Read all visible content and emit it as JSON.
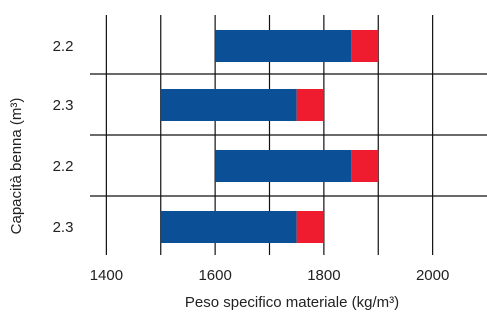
{
  "chart_data": {
    "type": "bar",
    "orientation": "horizontal",
    "stacked": true,
    "categories": [
      "2.2",
      "2.3",
      "2.2",
      "2.3"
    ],
    "series": [
      {
        "start": [
          1600,
          1500,
          1600,
          1500
        ],
        "end": [
          1850,
          1750,
          1850,
          1750
        ],
        "color": "#0b4f96"
      },
      {
        "start": [
          1850,
          1750,
          1850,
          1750
        ],
        "end": [
          1900,
          1800,
          1900,
          1800
        ],
        "color": "#ee1c2e"
      }
    ],
    "x_ticks": [
      "1400",
      "1600",
      "1800",
      "2000"
    ],
    "x_tick_values": [
      1400,
      1600,
      1800,
      2000
    ],
    "xlim": [
      1300,
      2100
    ],
    "grid_x_values": [
      1300,
      1400,
      1500,
      1600,
      1700,
      1800,
      1900,
      2000,
      2100
    ],
    "xlabel": "Peso specifico materiale (kg/m³)",
    "ylabel": "Capacità benna (m³)",
    "grid": true
  }
}
